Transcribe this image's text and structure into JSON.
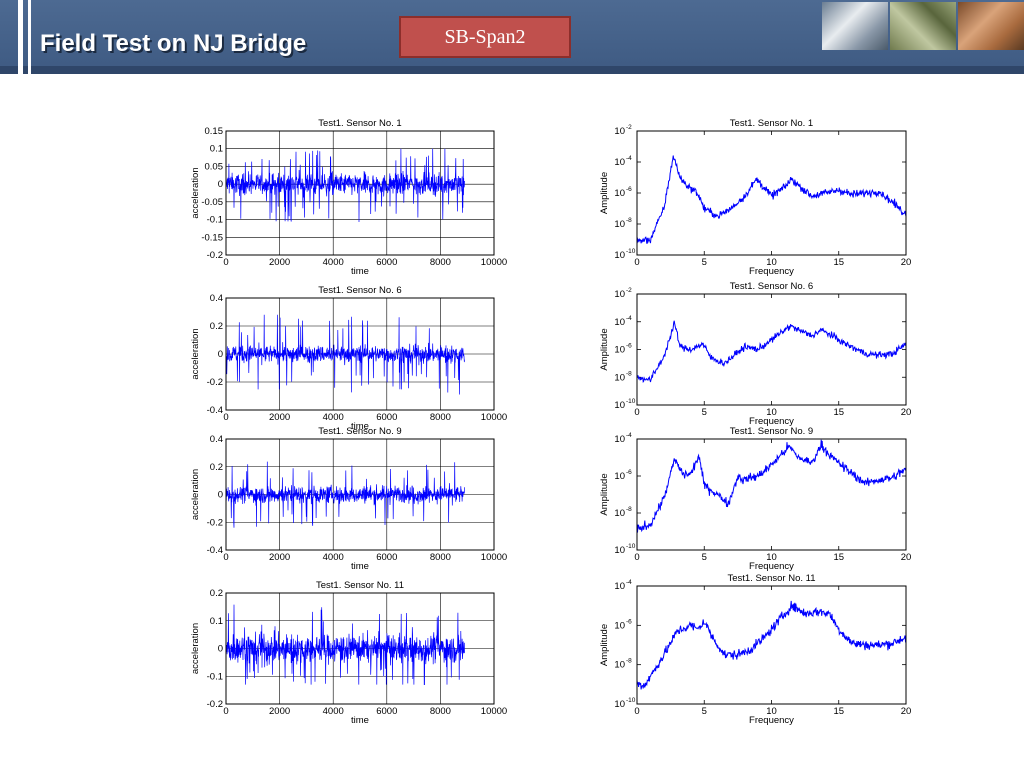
{
  "header": {
    "title": "Field Test on NJ Bridge",
    "label": "SB-Span2"
  },
  "chart_data": [
    {
      "id": "t1",
      "type": "line",
      "title": "Test1. Sensor No. 1",
      "xlabel": "time",
      "ylabel": "acceleration",
      "xlim": [
        0,
        10000
      ],
      "ylim": [
        -0.2,
        0.15
      ],
      "xticks": [
        0,
        2000,
        4000,
        6000,
        8000,
        10000
      ],
      "yticks": [
        -0.2,
        -0.15,
        -0.1,
        -0.05,
        0,
        0.05,
        0.1,
        0.15
      ],
      "ytick_labels": [
        "-0.2",
        "-0.15",
        "-0.1",
        "-0.05",
        "0",
        "0.05",
        "0.1",
        "0.15"
      ],
      "grid": true,
      "color": "#0000ff",
      "series": [
        {
          "x_range": [
            0,
            8900
          ],
          "amplitude": 0.03,
          "peak": 0.1,
          "min": -0.11
        }
      ]
    },
    {
      "id": "f1",
      "type": "line",
      "title": "Test1. Sensor No. 1",
      "xlabel": "Frequency",
      "ylabel": "Amplitude",
      "yscale": "log",
      "xlim": [
        0,
        20
      ],
      "ylim_exp": [
        -10,
        -2
      ],
      "xticks": [
        0,
        5,
        10,
        15,
        20
      ],
      "yticks_exp": [
        -10,
        -8,
        -6,
        -4,
        -2
      ],
      "grid": false,
      "color": "#0000ff",
      "series": [
        {
          "log_amplitude": [
            [
              0,
              -9.1
            ],
            [
              1,
              -9
            ],
            [
              2,
              -7
            ],
            [
              2.7,
              -3.6
            ],
            [
              3.2,
              -5
            ],
            [
              3.7,
              -5.5
            ],
            [
              4.5,
              -6
            ],
            [
              5,
              -7
            ],
            [
              6,
              -7.5
            ],
            [
              7,
              -7
            ],
            [
              8,
              -6.2
            ],
            [
              8.9,
              -5.1
            ],
            [
              9.5,
              -5.7
            ],
            [
              10,
              -6.2
            ],
            [
              11,
              -5.6
            ],
            [
              11.5,
              -5.1
            ],
            [
              12,
              -5.5
            ],
            [
              13,
              -6.2
            ],
            [
              14,
              -6
            ],
            [
              15,
              -5.8
            ],
            [
              16,
              -6.1
            ],
            [
              17,
              -6
            ],
            [
              18,
              -5.9
            ],
            [
              19,
              -6.6
            ],
            [
              20,
              -7.4
            ]
          ]
        }
      ]
    },
    {
      "id": "t6",
      "type": "line",
      "title": "Test1. Sensor No. 6",
      "xlabel": "time",
      "ylabel": "acceleration",
      "xlim": [
        0,
        10000
      ],
      "ylim": [
        -0.4,
        0.4
      ],
      "xticks": [
        0,
        2000,
        4000,
        6000,
        8000,
        10000
      ],
      "yticks": [
        -0.4,
        -0.2,
        0,
        0.2,
        0.4
      ],
      "ytick_labels": [
        "-0.4",
        "-0.2",
        "0",
        "0.2",
        "0.4"
      ],
      "grid": true,
      "color": "#0000ff",
      "series": [
        {
          "x_range": [
            0,
            8900
          ],
          "amplitude": 0.06,
          "peak": 0.28,
          "min": -0.3
        }
      ]
    },
    {
      "id": "f6",
      "type": "line",
      "title": "Test1. Sensor No. 6",
      "xlabel": "Frequency",
      "ylabel": "Amplitude",
      "yscale": "log",
      "xlim": [
        0,
        20
      ],
      "ylim_exp": [
        -10,
        -2
      ],
      "xticks": [
        0,
        5,
        10,
        15,
        20
      ],
      "yticks_exp": [
        -10,
        -8,
        -6,
        -4,
        -2
      ],
      "grid": false,
      "color": "#0000ff",
      "series": [
        {
          "log_amplitude": [
            [
              0,
              -8
            ],
            [
              1,
              -8.2
            ],
            [
              2,
              -6.5
            ],
            [
              2.8,
              -4.1
            ],
            [
              3.2,
              -5.8
            ],
            [
              4,
              -6
            ],
            [
              4.9,
              -5.6
            ],
            [
              5.5,
              -6.6
            ],
            [
              6.5,
              -7
            ],
            [
              7.5,
              -6.2
            ],
            [
              8,
              -5.8
            ],
            [
              9,
              -6
            ],
            [
              10,
              -5.3
            ],
            [
              11.4,
              -4.3
            ],
            [
              12,
              -4.6
            ],
            [
              13,
              -5
            ],
            [
              13.7,
              -4.6
            ],
            [
              14.5,
              -5
            ],
            [
              15.5,
              -5.6
            ],
            [
              17,
              -6.3
            ],
            [
              18,
              -6.4
            ],
            [
              19,
              -6.3
            ],
            [
              20,
              -5.6
            ]
          ]
        }
      ]
    },
    {
      "id": "t9",
      "type": "line",
      "title": "Test1. Sensor No. 9",
      "xlabel": "time",
      "ylabel": "acceleration",
      "xlim": [
        0,
        10000
      ],
      "ylim": [
        -0.4,
        0.4
      ],
      "xticks": [
        0,
        2000,
        4000,
        6000,
        8000,
        10000
      ],
      "yticks": [
        -0.4,
        -0.2,
        0,
        0.2,
        0.4
      ],
      "ytick_labels": [
        "-0.4",
        "-0.2",
        "0",
        "0.2",
        "0.4"
      ],
      "grid": true,
      "color": "#0000ff",
      "series": [
        {
          "x_range": [
            0,
            8900
          ],
          "amplitude": 0.06,
          "peak": 0.24,
          "min": -0.24
        }
      ]
    },
    {
      "id": "f9",
      "type": "line",
      "title": "Test1. Sensor No. 9",
      "xlabel": "Frequency",
      "ylabel": "Amplitude",
      "yscale": "log",
      "xlim": [
        0,
        20
      ],
      "ylim_exp": [
        -10,
        -4
      ],
      "xticks": [
        0,
        5,
        10,
        15,
        20
      ],
      "yticks_exp": [
        -10,
        -8,
        -6,
        -4
      ],
      "grid": false,
      "color": "#0000ff",
      "series": [
        {
          "log_amplitude": [
            [
              0,
              -8.9
            ],
            [
              1,
              -8.6
            ],
            [
              2,
              -7.2
            ],
            [
              2.8,
              -5.1
            ],
            [
              3.4,
              -5.9
            ],
            [
              4,
              -5.9
            ],
            [
              4.6,
              -4.9
            ],
            [
              5,
              -6.5
            ],
            [
              6,
              -7
            ],
            [
              6.8,
              -7.5
            ],
            [
              7.5,
              -6
            ],
            [
              7.9,
              -6.2
            ],
            [
              9,
              -6
            ],
            [
              10,
              -5.4
            ],
            [
              11.3,
              -4.4
            ],
            [
              12,
              -5
            ],
            [
              13,
              -5.3
            ],
            [
              13.7,
              -4.3
            ],
            [
              14.5,
              -5
            ],
            [
              15.5,
              -5.6
            ],
            [
              17,
              -6.4
            ],
            [
              18,
              -6.2
            ],
            [
              19,
              -6.1
            ],
            [
              20,
              -5.6
            ]
          ]
        }
      ]
    },
    {
      "id": "t11",
      "type": "line",
      "title": "Test1. Sensor No. 11",
      "xlabel": "time",
      "ylabel": "acceleration",
      "xlim": [
        0,
        10000
      ],
      "ylim": [
        -0.2,
        0.2
      ],
      "xticks": [
        0,
        2000,
        4000,
        6000,
        8000,
        10000
      ],
      "yticks": [
        -0.2,
        -0.1,
        0,
        0.1,
        0.2
      ],
      "ytick_labels": [
        "-0.2",
        "-0.1",
        "0",
        "0.1",
        "0.2"
      ],
      "grid": true,
      "color": "#0000ff",
      "series": [
        {
          "x_range": [
            0,
            8900
          ],
          "amplitude": 0.05,
          "peak": 0.16,
          "min": -0.13
        }
      ]
    },
    {
      "id": "f11",
      "type": "line",
      "title": "Test1. Sensor No. 11",
      "xlabel": "Frequency",
      "ylabel": "Amplitude",
      "yscale": "log",
      "xlim": [
        0,
        20
      ],
      "ylim_exp": [
        -10,
        -4
      ],
      "xticks": [
        0,
        5,
        10,
        15,
        20
      ],
      "yticks_exp": [
        -10,
        -8,
        -6,
        -4
      ],
      "grid": false,
      "color": "#0000ff",
      "series": [
        {
          "log_amplitude": [
            [
              0,
              -8.9
            ],
            [
              0.5,
              -9.1
            ],
            [
              1,
              -8.6
            ],
            [
              2,
              -7.5
            ],
            [
              3,
              -6.3
            ],
            [
              4,
              -6
            ],
            [
              4.5,
              -6.2
            ],
            [
              5,
              -5.8
            ],
            [
              5.6,
              -6.6
            ],
            [
              6.5,
              -7.5
            ],
            [
              7.5,
              -7.5
            ],
            [
              8.5,
              -7.2
            ],
            [
              9.5,
              -6.6
            ],
            [
              10.5,
              -5.8
            ],
            [
              11.5,
              -5
            ],
            [
              12.5,
              -5.4
            ],
            [
              13.5,
              -5.3
            ],
            [
              14.3,
              -5.4
            ],
            [
              15,
              -6.2
            ],
            [
              16,
              -6.9
            ],
            [
              17,
              -7
            ],
            [
              18,
              -7
            ],
            [
              19,
              -6.9
            ],
            [
              20,
              -6.6
            ]
          ]
        }
      ]
    }
  ]
}
